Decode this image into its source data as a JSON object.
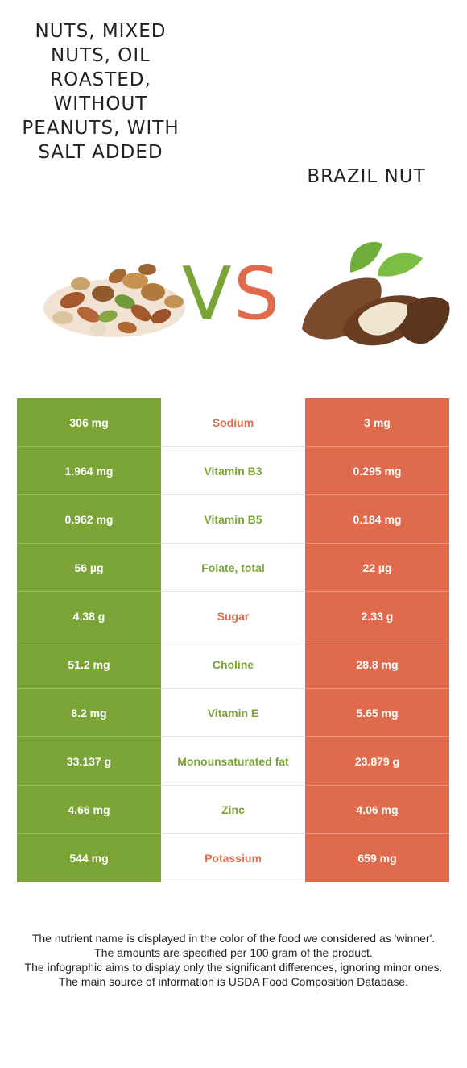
{
  "left_food": {
    "title": "Nuts, mixed nuts, oil roasted, without peanuts, with salt added"
  },
  "right_food": {
    "title": "Brazil nut"
  },
  "vs": {
    "v": "V",
    "s": "S"
  },
  "colors": {
    "left_accent": "#7aa435",
    "right_accent": "#e06b4c"
  },
  "rows": [
    {
      "left": "306 mg",
      "nutrient": "Sodium",
      "right": "3 mg",
      "winner": "right"
    },
    {
      "left": "1.964 mg",
      "nutrient": "Vitamin B3",
      "right": "0.295 mg",
      "winner": "left"
    },
    {
      "left": "0.962 mg",
      "nutrient": "Vitamin B5",
      "right": "0.184 mg",
      "winner": "left"
    },
    {
      "left": "56 µg",
      "nutrient": "Folate, total",
      "right": "22 µg",
      "winner": "left"
    },
    {
      "left": "4.38 g",
      "nutrient": "Sugar",
      "right": "2.33 g",
      "winner": "right"
    },
    {
      "left": "51.2 mg",
      "nutrient": "Choline",
      "right": "28.8 mg",
      "winner": "left"
    },
    {
      "left": "8.2 mg",
      "nutrient": "Vitamin E",
      "right": "5.65 mg",
      "winner": "left"
    },
    {
      "left": "33.137 g",
      "nutrient": "Monounsaturated fat",
      "right": "23.879 g",
      "winner": "left"
    },
    {
      "left": "4.66 mg",
      "nutrient": "Zinc",
      "right": "4.06 mg",
      "winner": "left"
    },
    {
      "left": "544 mg",
      "nutrient": "Potassium",
      "right": "659 mg",
      "winner": "right"
    }
  ],
  "footer": {
    "line1": "The nutrient name is displayed in the color of the food we considered as 'winner'.",
    "line2": "The amounts are specified per 100 gram of the product.",
    "line3": "The infographic aims to display only the significant differences, ignoring minor ones.",
    "line4": "The main source of information is USDA Food Composition Database."
  }
}
